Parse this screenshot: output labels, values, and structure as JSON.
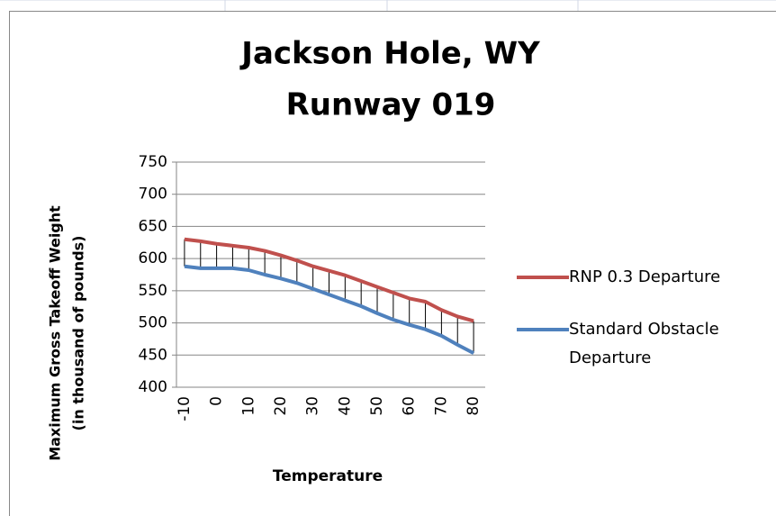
{
  "chart_data": {
    "type": "line",
    "title": [
      "Jackson Hole, WY",
      "Runway 019"
    ],
    "y_label": [
      "Maximum Gross  Takeoff Weight",
      "(in thousand of pounds)"
    ],
    "x_label": "Temperature",
    "categories": [
      -10,
      null,
      0,
      null,
      10,
      null,
      20,
      null,
      30,
      null,
      40,
      null,
      50,
      null,
      60,
      null,
      70,
      null,
      80
    ],
    "series": [
      {
        "name": "RNP 0.3 Departure",
        "color": "#c0504d",
        "values": [
          630,
          627,
          623,
          620,
          617,
          612,
          605,
          597,
          588,
          581,
          574,
          565,
          556,
          547,
          538,
          533,
          520,
          510,
          503
        ]
      },
      {
        "name": "Standard Obstacle Departure",
        "color": "#4f81bd",
        "values": [
          588,
          585,
          585,
          585,
          582,
          575,
          569,
          562,
          553,
          544,
          535,
          526,
          515,
          505,
          497,
          490,
          480,
          466,
          453
        ]
      }
    ],
    "ylim": [
      400,
      750
    ],
    "yticks": [
      400,
      450,
      500,
      550,
      600,
      650,
      700,
      750
    ],
    "grid": true,
    "drop_lines": true,
    "legend": "right"
  }
}
